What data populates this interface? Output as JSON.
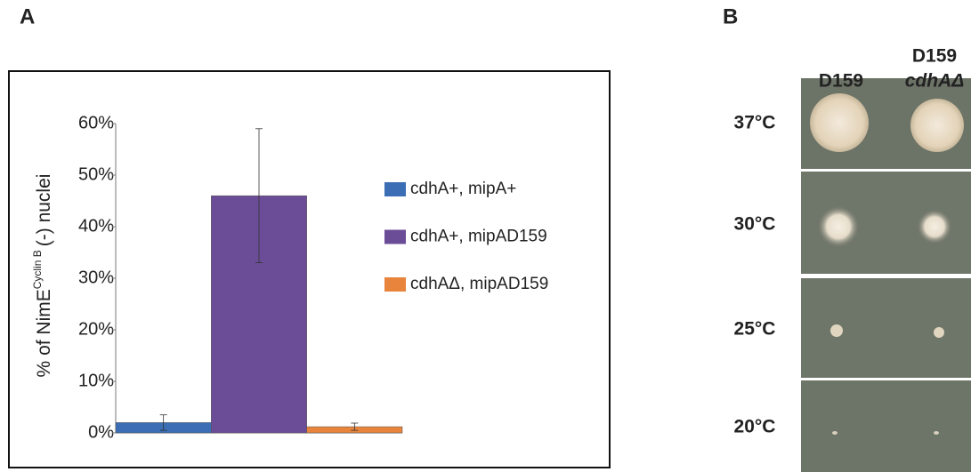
{
  "panel_labels": [
    "A",
    "B"
  ],
  "chart_data": {
    "type": "bar",
    "y_label": {
      "prefix": "% of NimE",
      "superscript": "Cyclin B",
      "suffix": "(-) nuclei"
    },
    "categories": [
      null
    ],
    "series": [
      {
        "name": "cdhA+, mipA+",
        "color": "#3b6eb4",
        "values": [
          2
        ],
        "errors": [
          1.5
        ]
      },
      {
        "name": "cdhA+, mipAD159",
        "color": "#6b4c96",
        "values": [
          46
        ],
        "errors": [
          13
        ]
      },
      {
        "name": "cdhAΔ, mipAD159",
        "color": "#e8843c",
        "values": [
          1.2
        ],
        "errors": [
          0.7
        ]
      }
    ],
    "ylim": [
      0,
      60
    ],
    "yticks": [
      {
        "value": 0,
        "label": "0%"
      },
      {
        "value": 10,
        "label": "10%"
      },
      {
        "value": 20,
        "label": "20%"
      },
      {
        "value": 30,
        "label": "30%"
      },
      {
        "value": 40,
        "label": "40%"
      },
      {
        "value": 50,
        "label": "50%"
      },
      {
        "value": 60,
        "label": "60%"
      }
    ],
    "grid": false
  },
  "plates": {
    "columns": [
      {
        "lines": [
          "D159"
        ]
      },
      {
        "lines": [
          "D159",
          "cdhAΔ"
        ]
      }
    ],
    "rows": [
      "37°C",
      "30°C",
      "25°C",
      "20°C"
    ]
  }
}
